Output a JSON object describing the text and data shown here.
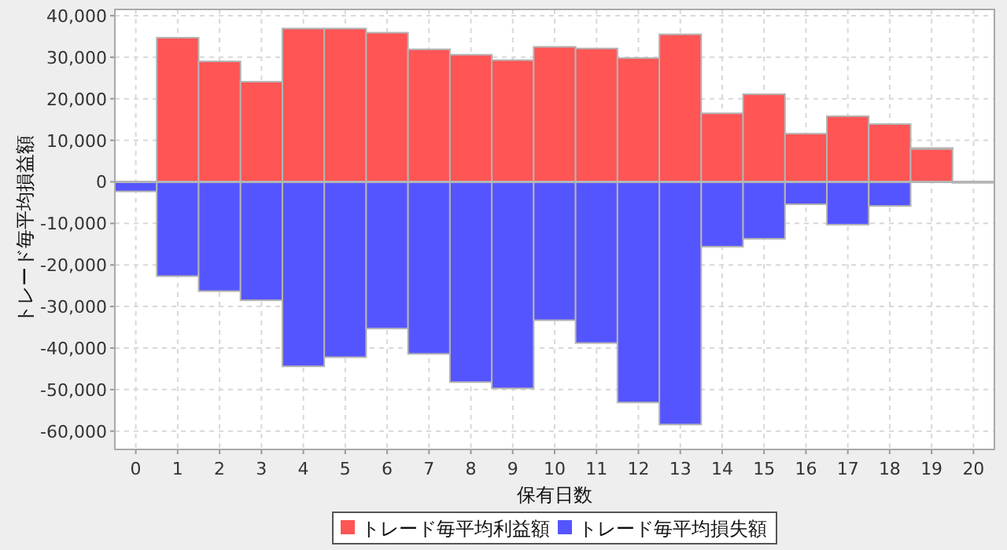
{
  "chart_data": {
    "type": "bar",
    "xlabel": "保有日数",
    "ylabel": "トレード毎平均損益額",
    "categories": [
      "0",
      "1",
      "2",
      "3",
      "4",
      "5",
      "6",
      "7",
      "8",
      "9",
      "10",
      "11",
      "12",
      "13",
      "14",
      "15",
      "16",
      "17",
      "18",
      "19",
      "20"
    ],
    "series": [
      {
        "name": "トレード毎平均利益額",
        "color": "#ff5555",
        "values": [
          0,
          34700,
          29000,
          24100,
          36900,
          36900,
          35900,
          31900,
          30600,
          29300,
          32500,
          32100,
          29800,
          35500,
          16500,
          21100,
          11600,
          15800,
          13900,
          8100,
          0
        ]
      },
      {
        "name": "トレード毎平均損失額",
        "color": "#5555ff",
        "values": [
          -2300,
          -22700,
          -26300,
          -28500,
          -44400,
          -42200,
          -35300,
          -41400,
          -48200,
          -49700,
          -33300,
          -38800,
          -53100,
          -58400,
          -15600,
          -13700,
          -5400,
          -10300,
          -5800,
          0,
          0
        ]
      }
    ],
    "stacked": true,
    "ylim": [
      -64400,
      41500
    ],
    "yticks": [
      {
        "value": -60000,
        "label": "-60,000"
      },
      {
        "value": -50000,
        "label": "-50,000"
      },
      {
        "value": -40000,
        "label": "-40,000"
      },
      {
        "value": -30000,
        "label": "-30,000"
      },
      {
        "value": -20000,
        "label": "-20,000"
      },
      {
        "value": -10000,
        "label": "-10,000"
      },
      {
        "value": 0,
        "label": "0"
      },
      {
        "value": 10000,
        "label": "10,000"
      },
      {
        "value": 20000,
        "label": "20,000"
      },
      {
        "value": 30000,
        "label": "30,000"
      },
      {
        "value": 40000,
        "label": "40,000"
      }
    ],
    "grid": true,
    "legend": "bottom"
  }
}
